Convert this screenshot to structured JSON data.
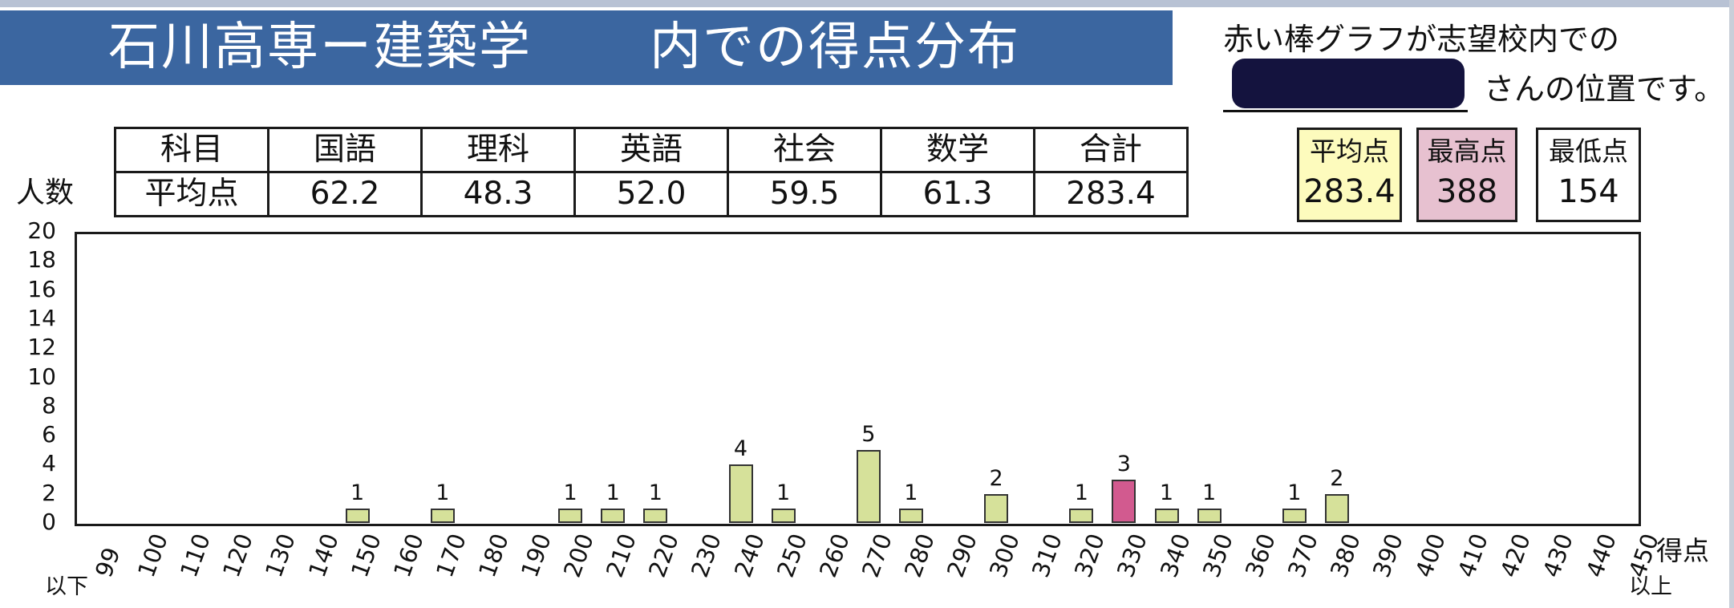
{
  "title_left": "石川高専ー建築学",
  "title_right": "内での得点分布",
  "note_line1": "赤い棒グラフが志望校内での",
  "note_line2": "さんの位置です。",
  "avg_table": {
    "header": [
      "科目",
      "国語",
      "理科",
      "英語",
      "社会",
      "数学",
      "合計"
    ],
    "row": [
      "平均点",
      "62.2",
      "48.3",
      "52.0",
      "59.5",
      "61.3",
      "283.4"
    ]
  },
  "stats": [
    {
      "label": "平均点",
      "value": "283.4",
      "color": "#fdfbbd"
    },
    {
      "label": "最高点",
      "value": "388",
      "color": "#e7c1d0"
    },
    {
      "label": "最低点",
      "value": "154",
      "color": "#ffffff"
    }
  ],
  "chart_data": {
    "type": "bar",
    "ylabel": "人数",
    "xlabel": "得点",
    "ylim": [
      0,
      20
    ],
    "yticks": [
      "20",
      "18",
      "16",
      "14",
      "12",
      "10",
      "8",
      "6",
      "4",
      "2",
      "0"
    ],
    "categories": [
      "99",
      "100",
      "110",
      "120",
      "130",
      "140",
      "150",
      "160",
      "170",
      "180",
      "190",
      "200",
      "210",
      "220",
      "230",
      "240",
      "250",
      "260",
      "270",
      "280",
      "290",
      "300",
      "310",
      "320",
      "330",
      "340",
      "350",
      "360",
      "370",
      "380",
      "390",
      "400",
      "410",
      "420",
      "430",
      "440",
      "450"
    ],
    "values": [
      0,
      0,
      0,
      0,
      0,
      0,
      1,
      0,
      1,
      0,
      0,
      1,
      1,
      1,
      0,
      4,
      1,
      0,
      5,
      1,
      0,
      2,
      0,
      1,
      3,
      1,
      1,
      0,
      1,
      2,
      0,
      0,
      0,
      0,
      0,
      0,
      0
    ],
    "highlight_category": "330",
    "bar_color": "#d6e19a",
    "highlight_color": "#d25a8f",
    "first_label_suffix": "以下",
    "last_label_suffix": "以上"
  }
}
